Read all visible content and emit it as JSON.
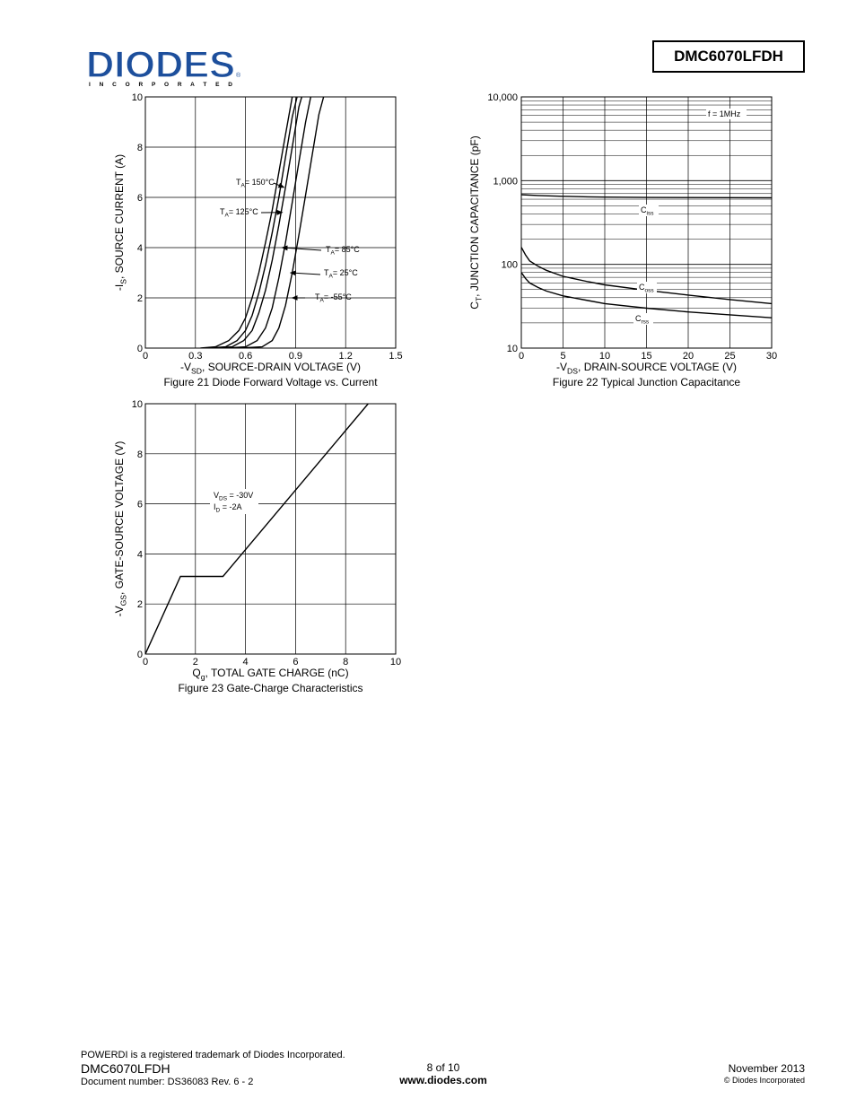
{
  "header": {
    "logo_text": "DIODES",
    "logo_sub": "I N C O R P O R A T E D",
    "logo_reg": "®",
    "part_number": "DMC6070LFDH"
  },
  "colors": {
    "logo_blue": "#1d4f9c",
    "line": "#000000"
  },
  "chart_data": [
    {
      "type": "line",
      "caption": "Figure 21 Diode Forward Voltage vs. Current",
      "xlabel": "-V",
      "xlabel_sub": "SD",
      "xlabel_rest": ", SOURCE-DRAIN VOLTAGE (V)",
      "ylabel": "-I",
      "ylabel_sub": "S",
      "ylabel_rest": ", SOURCE CURRENT (A)",
      "xlim": [
        0,
        1.5
      ],
      "ylim": [
        0,
        10
      ],
      "xticks": [
        "0",
        "0.3",
        "0.6",
        "0.9",
        "1.2",
        "1.5"
      ],
      "yticks": [
        "0",
        "2",
        "4",
        "6",
        "8",
        "10"
      ],
      "grid": true,
      "series": [
        {
          "name": "TA= 150°C",
          "x": [
            0.33,
            0.42,
            0.5,
            0.56,
            0.6,
            0.64,
            0.68,
            0.72,
            0.76,
            0.8,
            0.84,
            0.88,
            0.9
          ],
          "y": [
            0,
            0.05,
            0.3,
            0.7,
            1.2,
            2.0,
            3.0,
            4.2,
            5.5,
            7.0,
            8.5,
            10.0,
            10.3
          ]
        },
        {
          "name": "TA= 125°C",
          "x": [
            0.38,
            0.48,
            0.55,
            0.6,
            0.64,
            0.68,
            0.72,
            0.76,
            0.8,
            0.84,
            0.88,
            0.92
          ],
          "y": [
            0,
            0.05,
            0.3,
            0.7,
            1.3,
            2.2,
            3.3,
            4.6,
            6.0,
            7.6,
            9.2,
            10.3
          ]
        },
        {
          "name": "TA= 85°C",
          "x": [
            0.42,
            0.52,
            0.59,
            0.64,
            0.68,
            0.72,
            0.76,
            0.8,
            0.84,
            0.88,
            0.92,
            0.95
          ],
          "y": [
            0,
            0.05,
            0.3,
            0.7,
            1.4,
            2.3,
            3.5,
            4.9,
            6.4,
            8.0,
            9.6,
            10.3
          ]
        },
        {
          "name": "TA= 25°C",
          "x": [
            0.48,
            0.6,
            0.67,
            0.72,
            0.76,
            0.8,
            0.84,
            0.88,
            0.92,
            0.96,
            1.0
          ],
          "y": [
            0,
            0.05,
            0.3,
            0.8,
            1.6,
            2.8,
            4.2,
            5.8,
            7.4,
            9.0,
            10.3
          ]
        },
        {
          "name": "TA= -55°C",
          "x": [
            0.56,
            0.7,
            0.76,
            0.8,
            0.84,
            0.88,
            0.92,
            0.96,
            1.0,
            1.04,
            1.08
          ],
          "y": [
            0,
            0.05,
            0.3,
            0.8,
            1.7,
            3.0,
            4.5,
            6.1,
            7.7,
            9.3,
            10.3
          ]
        }
      ]
    },
    {
      "type": "line",
      "caption": "Figure 22 Typical Junction Capacitance",
      "xlabel": "-V",
      "xlabel_sub": "DS",
      "xlabel_rest": ", DRAIN-SOURCE VOLTAGE (V)",
      "ylabel": "C",
      "ylabel_sub": "T",
      "ylabel_rest": ", JUNCTION CAPACITANCE (pF)",
      "xlim": [
        0,
        30
      ],
      "ylim": [
        10,
        10000
      ],
      "yscale": "log",
      "xticks": [
        "0",
        "5",
        "10",
        "15",
        "20",
        "25",
        "30"
      ],
      "yticks": [
        "10",
        "100",
        "1,000",
        "10,000"
      ],
      "grid": true,
      "annotation": "f = 1MHz",
      "series": [
        {
          "name": "C",
          "name_sub": "iss",
          "x": [
            0,
            2,
            5,
            8,
            10,
            15,
            20,
            25,
            30
          ],
          "y": [
            680,
            665,
            650,
            640,
            635,
            630,
            628,
            626,
            625
          ]
        },
        {
          "name": "C",
          "name_sub": "oss",
          "x": [
            0,
            0.5,
            1,
            2,
            3,
            5,
            8,
            10,
            15,
            20,
            25,
            30
          ],
          "y": [
            160,
            130,
            110,
            95,
            85,
            72,
            62,
            57,
            49,
            43,
            38,
            34
          ]
        },
        {
          "name": "C",
          "name_sub": "rss",
          "x": [
            0,
            0.5,
            1,
            2,
            3,
            5,
            8,
            10,
            15,
            20,
            25,
            30
          ],
          "y": [
            80,
            68,
            60,
            53,
            48,
            42,
            37,
            34,
            30,
            27,
            25,
            23
          ]
        }
      ]
    },
    {
      "type": "line",
      "caption": "Figure 23 Gate-Charge Characteristics",
      "xlabel": "Q",
      "xlabel_sub": "g",
      "xlabel_rest": ", TOTAL GATE CHARGE (nC)",
      "ylabel": "-V",
      "ylabel_sub": "GS",
      "ylabel_rest": ", GATE-SOURCE VOLTAGE (V)",
      "xlim": [
        0,
        10
      ],
      "ylim": [
        0,
        10
      ],
      "xticks": [
        "0",
        "2",
        "4",
        "6",
        "8",
        "10"
      ],
      "yticks": [
        "0",
        "2",
        "4",
        "6",
        "8",
        "10"
      ],
      "grid": true,
      "annotation_lines": [
        {
          "a": "V",
          "sub": "DS",
          "b": " = -30V"
        },
        {
          "a": "I",
          "sub": "D",
          "b": " = -2A"
        }
      ],
      "series": [
        {
          "name": "",
          "x": [
            0,
            1.4,
            3.1,
            8.9
          ],
          "y": [
            0,
            3.1,
            3.1,
            10.0
          ]
        }
      ]
    }
  ],
  "footer": {
    "trademark": "POWERDI is a registered trademark of Diodes Incorporated.",
    "part": "DMC6070LFDH",
    "doc": "Document number: DS36083 Rev. 6 - 2",
    "page": "8 of 10",
    "website": "www.diodes.com",
    "date": "November 2013",
    "copyright": "© Diodes Incorporated"
  }
}
